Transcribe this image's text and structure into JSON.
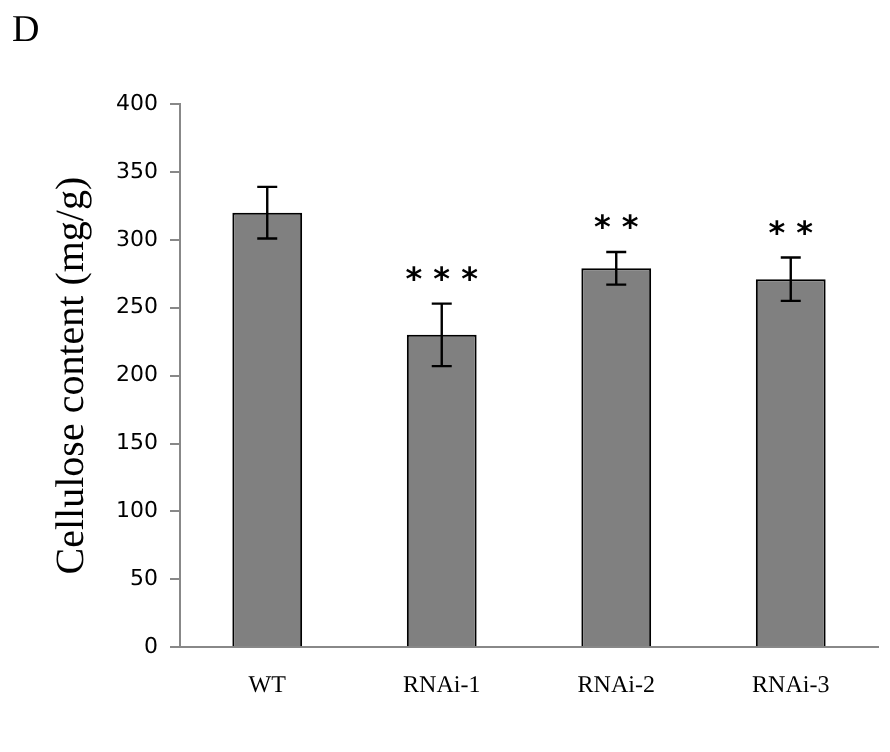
{
  "chart_data": {
    "type": "bar",
    "ylabel": "Cellulose content (mg/g)",
    "categories": [
      "WT",
      "RNAi-1",
      "RNAi-2",
      "RNAi-3"
    ],
    "values": [
      320,
      230,
      279,
      271
    ],
    "errors": [
      19,
      23,
      12,
      16
    ],
    "color": "#808080",
    "ylim": [
      0,
      400
    ],
    "yticks": [
      0,
      50,
      100,
      150,
      200,
      250,
      300,
      350,
      400
    ],
    "grid": false,
    "legend": false,
    "annotations": [
      "D",
      "* * *",
      "* *",
      "* *"
    ]
  }
}
